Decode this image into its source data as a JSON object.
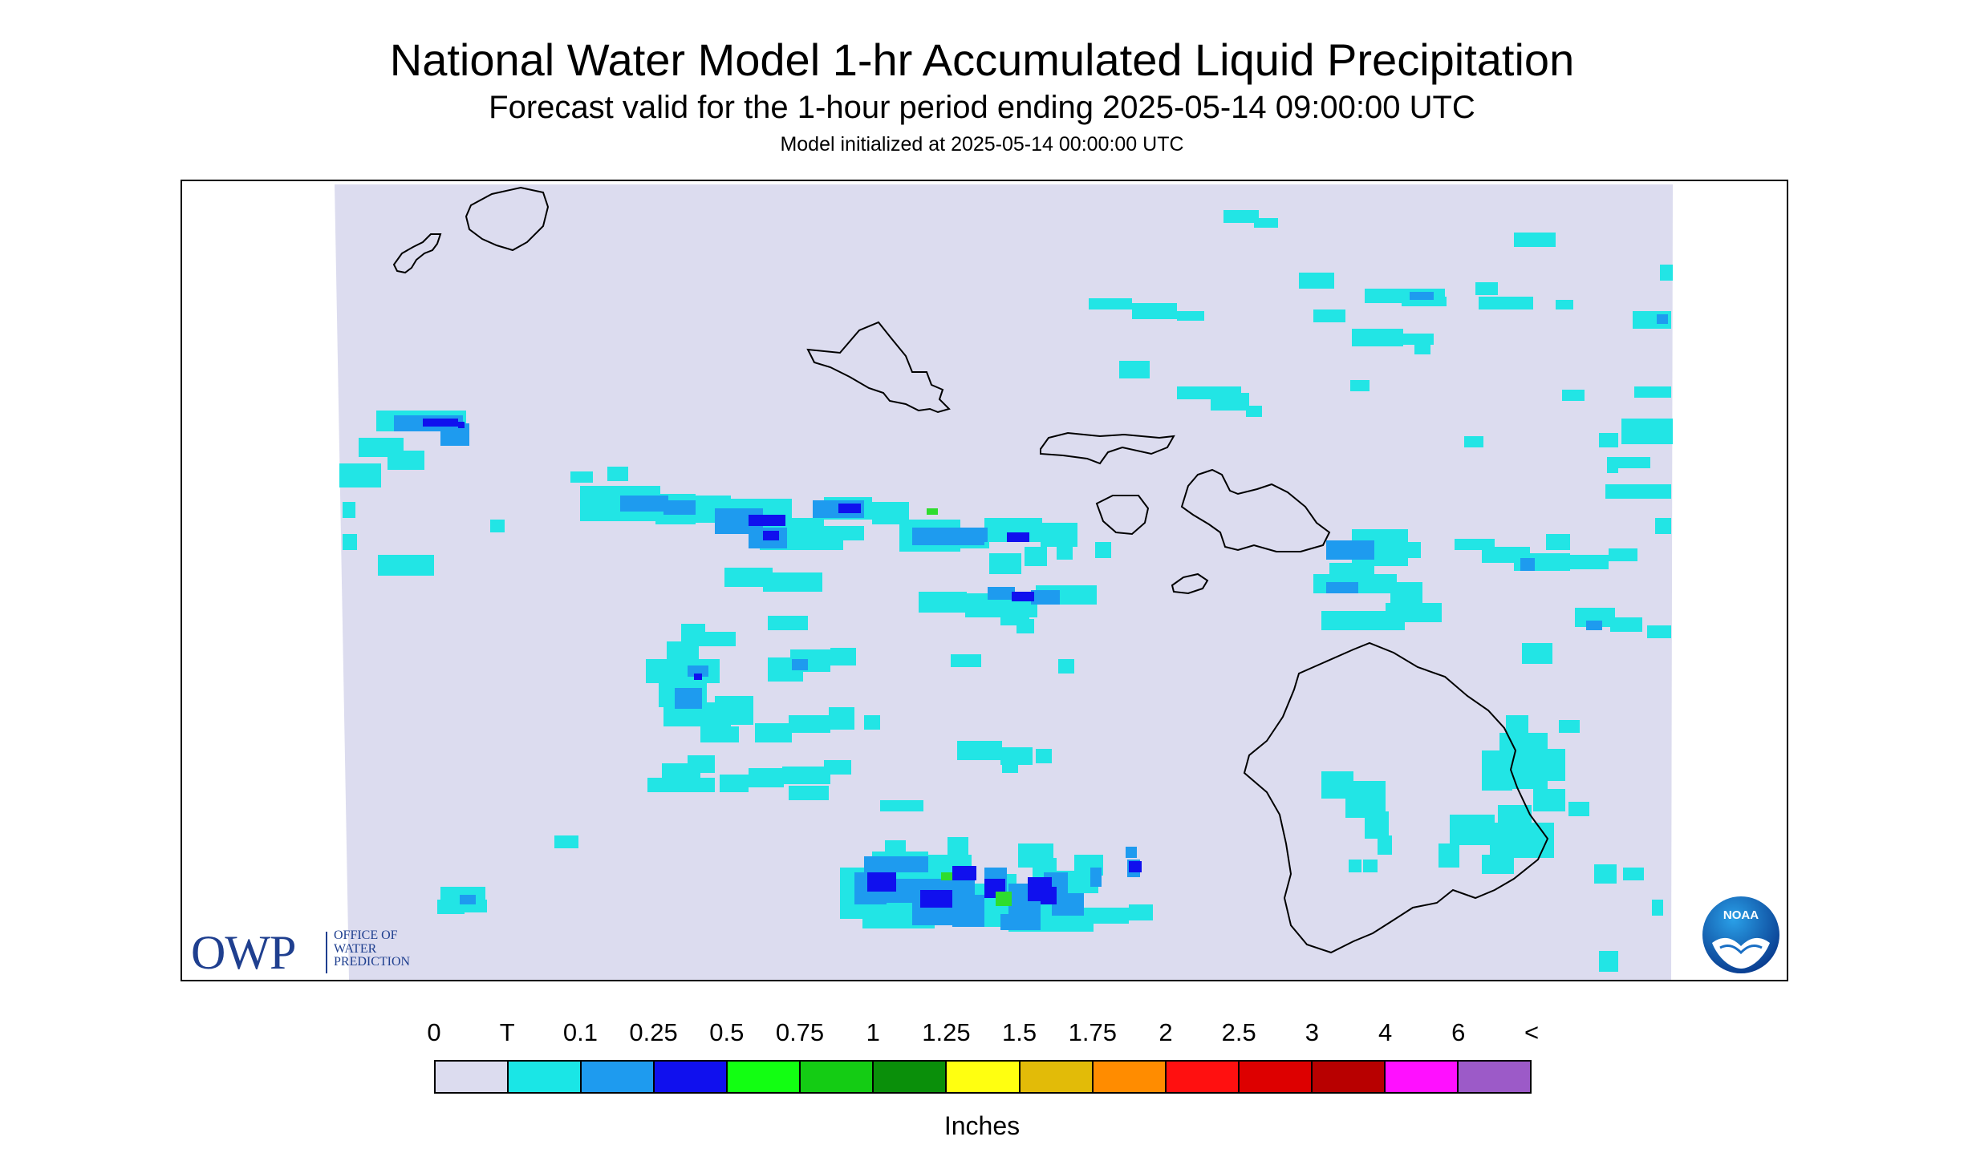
{
  "header": {
    "title": "National Water Model 1-hr Accumulated Liquid Precipitation",
    "subtitle": "Forecast valid for the 1-hour period ending 2025-05-14 09:00:00 UTC",
    "init": "Model initialized at 2025-05-14 00:00:00 UTC"
  },
  "logos": {
    "owp_big": "OWP",
    "owp_lines": [
      "OFFICE OF",
      "WATER",
      "PREDICTION"
    ],
    "noaa_text": "NOAA"
  },
  "colors": {
    "background": "#dcdcef",
    "trace": "#22e5e5",
    "light_blue": "#1e9bef",
    "blue": "#1010ee",
    "green": "#2edd2e",
    "coast": "#000000",
    "owp_blue": "#1f3f8f"
  },
  "legend": {
    "labels": [
      "0",
      "T",
      "0.1",
      "0.25",
      "0.5",
      "0.75",
      "1",
      "1.25",
      "1.5",
      "1.75",
      "2",
      "2.5",
      "3",
      "4",
      "6",
      "<"
    ],
    "colors": [
      "#dcdcef",
      "#1ae6e6",
      "#1e9bef",
      "#1010ee",
      "#12ff12",
      "#14cc14",
      "#0a8f0a",
      "#ffff10",
      "#e2bb08",
      "#ff8c00",
      "#ff1010",
      "#dd0000",
      "#b80000",
      "#ff10ff",
      "#9c5ac8"
    ],
    "units": "Inches"
  },
  "map": {
    "islands": [
      "Niihau",
      "Kauai",
      "Oahu",
      "Molokai",
      "Lanai",
      "Maui",
      "Kahoolawe",
      "Hawaii"
    ]
  }
}
